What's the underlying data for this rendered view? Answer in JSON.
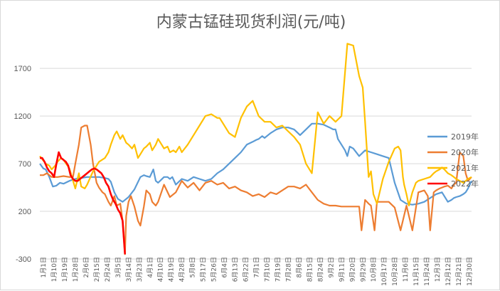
{
  "chart_data": {
    "type": "line",
    "title": "内蒙古锰硅现货利润(元/吨)",
    "xlabel": "",
    "ylabel": "",
    "ylim": [
      -300,
      2000
    ],
    "yticks": [
      -300,
      200,
      700,
      1200,
      1700
    ],
    "grid": "horizontal",
    "legend_position": "right",
    "x_tick_labels": [
      "1月1日",
      "1月10日",
      "1月19日",
      "1月28日",
      "2月6日",
      "2月15日",
      "2月24日",
      "3月5日",
      "3月14日",
      "3月23日",
      "4月1日",
      "4月10日",
      "4月19日",
      "4月28日",
      "5月8日",
      "5月17日",
      "5月26日",
      "6月4日",
      "6月13日",
      "6月22日",
      "7月1日",
      "7月10日",
      "7月19日",
      "7月28日",
      "8月6日",
      "8月15日",
      "8月24日",
      "9月2日",
      "9月11日",
      "9月20日",
      "9月29日",
      "10月8日",
      "10月17日",
      "10月28日",
      "11月6日",
      "11月15日",
      "11月24日",
      "12月3日",
      "12月12日",
      "12月21日",
      "12月30日"
    ],
    "series": [
      {
        "name": "2019年",
        "color": "#5b9bd5",
        "x": [
          0,
          3,
          5,
          8,
          11,
          14,
          17,
          20,
          25,
          30,
          40,
          50,
          55,
          58,
          60,
          63,
          66,
          70,
          75,
          80,
          85,
          88,
          90,
          93,
          96,
          98,
          100,
          105,
          108,
          110,
          112,
          115,
          120,
          125,
          130,
          135,
          140,
          145,
          150,
          155,
          160,
          165,
          170,
          175,
          180,
          183,
          185,
          188,
          190,
          195,
          200,
          205,
          210,
          215,
          220,
          225,
          230,
          235,
          240,
          245,
          248,
          250,
          252,
          255,
          258,
          260,
          262,
          265,
          270,
          275,
          280,
          285,
          290,
          295,
          300,
          305,
          310,
          315,
          320,
          325,
          330,
          335,
          340,
          345,
          348,
          350,
          352,
          355,
          358,
          360,
          362,
          365
        ],
        "y": [
          700,
          650,
          640,
          560,
          460,
          470,
          500,
          490,
          520,
          540,
          560,
          560,
          550,
          540,
          510,
          400,
          330,
          300,
          350,
          430,
          560,
          580,
          570,
          560,
          640,
          520,
          500,
          560,
          560,
          540,
          560,
          480,
          540,
          520,
          560,
          540,
          520,
          540,
          600,
          640,
          700,
          760,
          820,
          900,
          930,
          950,
          960,
          990,
          970,
          1020,
          1060,
          1080,
          1080,
          1060,
          1000,
          1060,
          1120,
          1120,
          1110,
          1080,
          1060,
          1060,
          960,
          900,
          840,
          780,
          880,
          860,
          780,
          840,
          820,
          800,
          780,
          760,
          500,
          320,
          280,
          270,
          280,
          300,
          340,
          380,
          400,
          300,
          320,
          340,
          350,
          360,
          380,
          400,
          440,
          520
        ]
      },
      {
        "name": "2020年",
        "color": "#ed7d31",
        "x": [
          0,
          3,
          6,
          10,
          15,
          20,
          25,
          28,
          30,
          33,
          35,
          38,
          40,
          43,
          45,
          48,
          50,
          53,
          55,
          58,
          60,
          63,
          65,
          68,
          70,
          72,
          73,
          75,
          77,
          80,
          83,
          85,
          88,
          90,
          93,
          95,
          98,
          100,
          105,
          110,
          115,
          120,
          125,
          130,
          135,
          140,
          145,
          150,
          155,
          160,
          165,
          170,
          175,
          180,
          185,
          190,
          195,
          200,
          205,
          210,
          215,
          220,
          225,
          230,
          235,
          240,
          245,
          250,
          255,
          260,
          265,
          270,
          272,
          275,
          278,
          280,
          283,
          285,
          290,
          295,
          300,
          305,
          310,
          315,
          320,
          325,
          328,
          330,
          333,
          335,
          338,
          340,
          342,
          345,
          348,
          350,
          352,
          355,
          358,
          360,
          362,
          365
        ],
        "y": [
          580,
          580,
          600,
          560,
          560,
          570,
          560,
          560,
          700,
          900,
          1080,
          1100,
          1100,
          900,
          700,
          500,
          450,
          400,
          380,
          300,
          260,
          360,
          260,
          280,
          100,
          -250,
          150,
          300,
          360,
          250,
          100,
          50,
          250,
          420,
          380,
          300,
          260,
          300,
          480,
          350,
          400,
          520,
          450,
          500,
          420,
          500,
          520,
          480,
          500,
          440,
          460,
          420,
          400,
          360,
          380,
          350,
          400,
          380,
          420,
          460,
          460,
          440,
          480,
          400,
          320,
          280,
          260,
          260,
          250,
          250,
          250,
          250,
          0,
          320,
          280,
          260,
          0,
          300,
          300,
          300,
          240,
          0,
          260,
          0,
          400,
          420,
          360,
          0,
          400,
          420,
          440,
          450,
          460,
          470,
          440,
          480,
          500,
          820,
          780,
          600,
          520,
          560
        ]
      },
      {
        "name": "2021年",
        "color": "#ffc000",
        "x": [
          0,
          5,
          8,
          10,
          13,
          15,
          18,
          20,
          25,
          30,
          33,
          35,
          38,
          40,
          45,
          50,
          55,
          58,
          60,
          63,
          65,
          68,
          70,
          73,
          75,
          78,
          80,
          83,
          85,
          88,
          90,
          93,
          95,
          98,
          100,
          103,
          105,
          108,
          110,
          113,
          115,
          118,
          120,
          125,
          130,
          135,
          140,
          145,
          150,
          152,
          155,
          160,
          165,
          170,
          175,
          180,
          185,
          190,
          195,
          200,
          205,
          210,
          215,
          220,
          225,
          230,
          235,
          240,
          245,
          250,
          255,
          260,
          265,
          270,
          273,
          275,
          278,
          280,
          282,
          285,
          290,
          295,
          300,
          303,
          305,
          307,
          308,
          310,
          312,
          315,
          318,
          320,
          325,
          330,
          333,
          335,
          338,
          340,
          342,
          345,
          348,
          350,
          352,
          355,
          358,
          360,
          362,
          365
        ],
        "y": [
          780,
          700,
          680,
          640,
          680,
          720,
          760,
          740,
          650,
          440,
          600,
          460,
          440,
          480,
          620,
          720,
          760,
          820,
          900,
          1000,
          1040,
          960,
          1000,
          920,
          900,
          860,
          900,
          760,
          800,
          860,
          880,
          920,
          840,
          900,
          960,
          900,
          860,
          880,
          820,
          840,
          820,
          880,
          820,
          900,
          1000,
          1100,
          1200,
          1220,
          1180,
          1180,
          1120,
          1020,
          980,
          1180,
          1300,
          1360,
          1200,
          1140,
          1140,
          1080,
          1100,
          1040,
          980,
          900,
          700,
          600,
          1240,
          1120,
          1200,
          1140,
          1200,
          1960,
          1940,
          1620,
          1500,
          1140,
          560,
          620,
          380,
          280,
          540,
          720,
          860,
          880,
          840,
          560,
          480,
          380,
          260,
          400,
          500,
          520,
          540,
          560,
          600,
          620,
          640,
          660,
          640,
          600,
          580,
          560,
          540,
          520,
          500,
          520,
          540,
          560
        ]
      },
      {
        "name": "2022年",
        "color": "#ff0000",
        "x": [
          0,
          2,
          4,
          6,
          8,
          10,
          12,
          14,
          16,
          18,
          20,
          22,
          24,
          26,
          28,
          30,
          32,
          34,
          36,
          38,
          40,
          42,
          44,
          46,
          48,
          50,
          52,
          54,
          56,
          58,
          60,
          62,
          64,
          66,
          68,
          70,
          72
        ],
        "y": [
          760,
          760,
          720,
          660,
          620,
          600,
          560,
          700,
          820,
          760,
          740,
          720,
          680,
          580,
          540,
          520,
          520,
          540,
          560,
          580,
          600,
          620,
          640,
          650,
          640,
          620,
          600,
          560,
          500,
          460,
          380,
          320,
          280,
          220,
          180,
          100,
          -250
        ]
      }
    ]
  }
}
